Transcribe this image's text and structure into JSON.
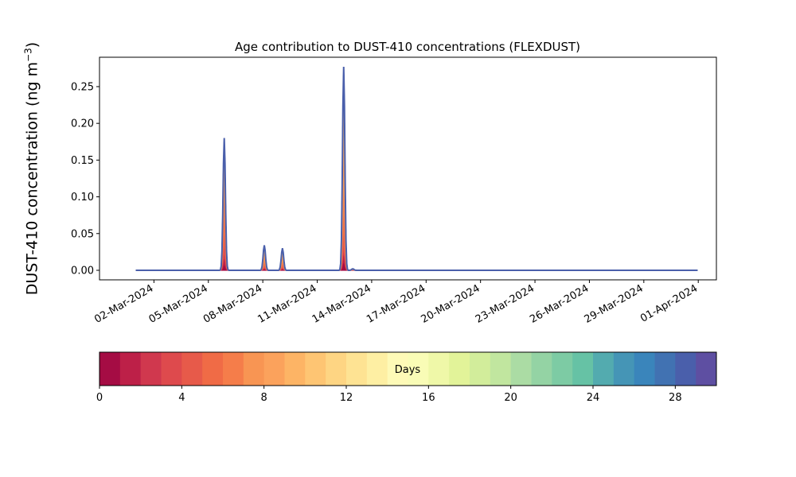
{
  "chart_data": [
    {
      "type": "area",
      "title": "Age contribution to DUST-410 concentrations (FLEXDUST)",
      "xlabel": "",
      "ylabel": "DUST-410 concentration (ng m",
      "ylabel_superscript": "−3",
      "ylabel_suffix": ")",
      "stacked": true,
      "x_range": [
        "2024-02-28",
        "2024-04-02"
      ],
      "ylim": [
        -0.013,
        0.29
      ],
      "x_ticks": [
        "2024-03-02",
        "2024-03-05",
        "2024-03-08",
        "2024-03-11",
        "2024-03-14",
        "2024-03-17",
        "2024-03-20",
        "2024-03-23",
        "2024-03-26",
        "2024-03-29",
        "2024-04-01"
      ],
      "x_tick_labels": [
        "02-Mar-2024",
        "05-Mar-2024",
        "08-Mar-2024",
        "11-Mar-2024",
        "14-Mar-2024",
        "17-Mar-2024",
        "20-Mar-2024",
        "23-Mar-2024",
        "26-Mar-2024",
        "29-Mar-2024",
        "01-Apr-2024"
      ],
      "y_ticks": [
        0.0,
        0.05,
        0.1,
        0.15,
        0.2,
        0.25
      ],
      "y_tick_labels": [
        "0.00",
        "0.05",
        "0.10",
        "0.15",
        "0.20",
        "0.25"
      ],
      "data_x_range": [
        "2024-03-01 00:00",
        "2024-03-31 23:00"
      ],
      "events": [
        {
          "peak_time": "2024-03-05 21:00",
          "total": 0.18,
          "age_days_mean": 6,
          "peak_1day": 0.095,
          "peak_2day": 0.07
        },
        {
          "peak_time": "2024-03-08 02:00",
          "total": 0.034,
          "age_days_mean": 7,
          "peak_1day": 0.015,
          "peak_2day": 0.012
        },
        {
          "peak_time": "2024-03-09 02:00",
          "total": 0.03,
          "age_days_mean": 7,
          "peak_1day": 0.014,
          "peak_2day": 0.011
        },
        {
          "peak_time": "2024-03-12 11:00",
          "total": 0.277,
          "age_days_mean": 7,
          "peak_1day": 0.15,
          "peak_2day": 0.07
        },
        {
          "peak_time": "2024-03-12 23:00",
          "total": 0.002,
          "age_days_mean": 5,
          "peak_1day": 0.001,
          "peak_2day": 0.0
        }
      ]
    },
    {
      "type": "colorbar",
      "label": "Days",
      "range": [
        0,
        30
      ],
      "ticks": [
        0,
        4,
        8,
        12,
        16,
        20,
        24,
        28
      ],
      "tick_labels": [
        "0",
        "4",
        "8",
        "12",
        "16",
        "20",
        "24",
        "28"
      ],
      "colors": [
        "#a50c44",
        "#bd2048",
        "#d0384e",
        "#de4a4d",
        "#e75a4a",
        "#f06b46",
        "#f57d4a",
        "#f89553",
        "#fba25c",
        "#fdb465",
        "#fec573",
        "#fed583",
        "#fee393",
        "#feefa3",
        "#fefab7",
        "#f9fcb6",
        "#eff8a8",
        "#e2f399",
        "#d2ed9b",
        "#c1e69f",
        "#abdca4",
        "#94d3a4",
        "#7dcba4",
        "#66c2a5",
        "#53abaf",
        "#4595b6",
        "#3a85bb",
        "#4172b2",
        "#4a5fab",
        "#5e4fa2"
      ]
    }
  ]
}
